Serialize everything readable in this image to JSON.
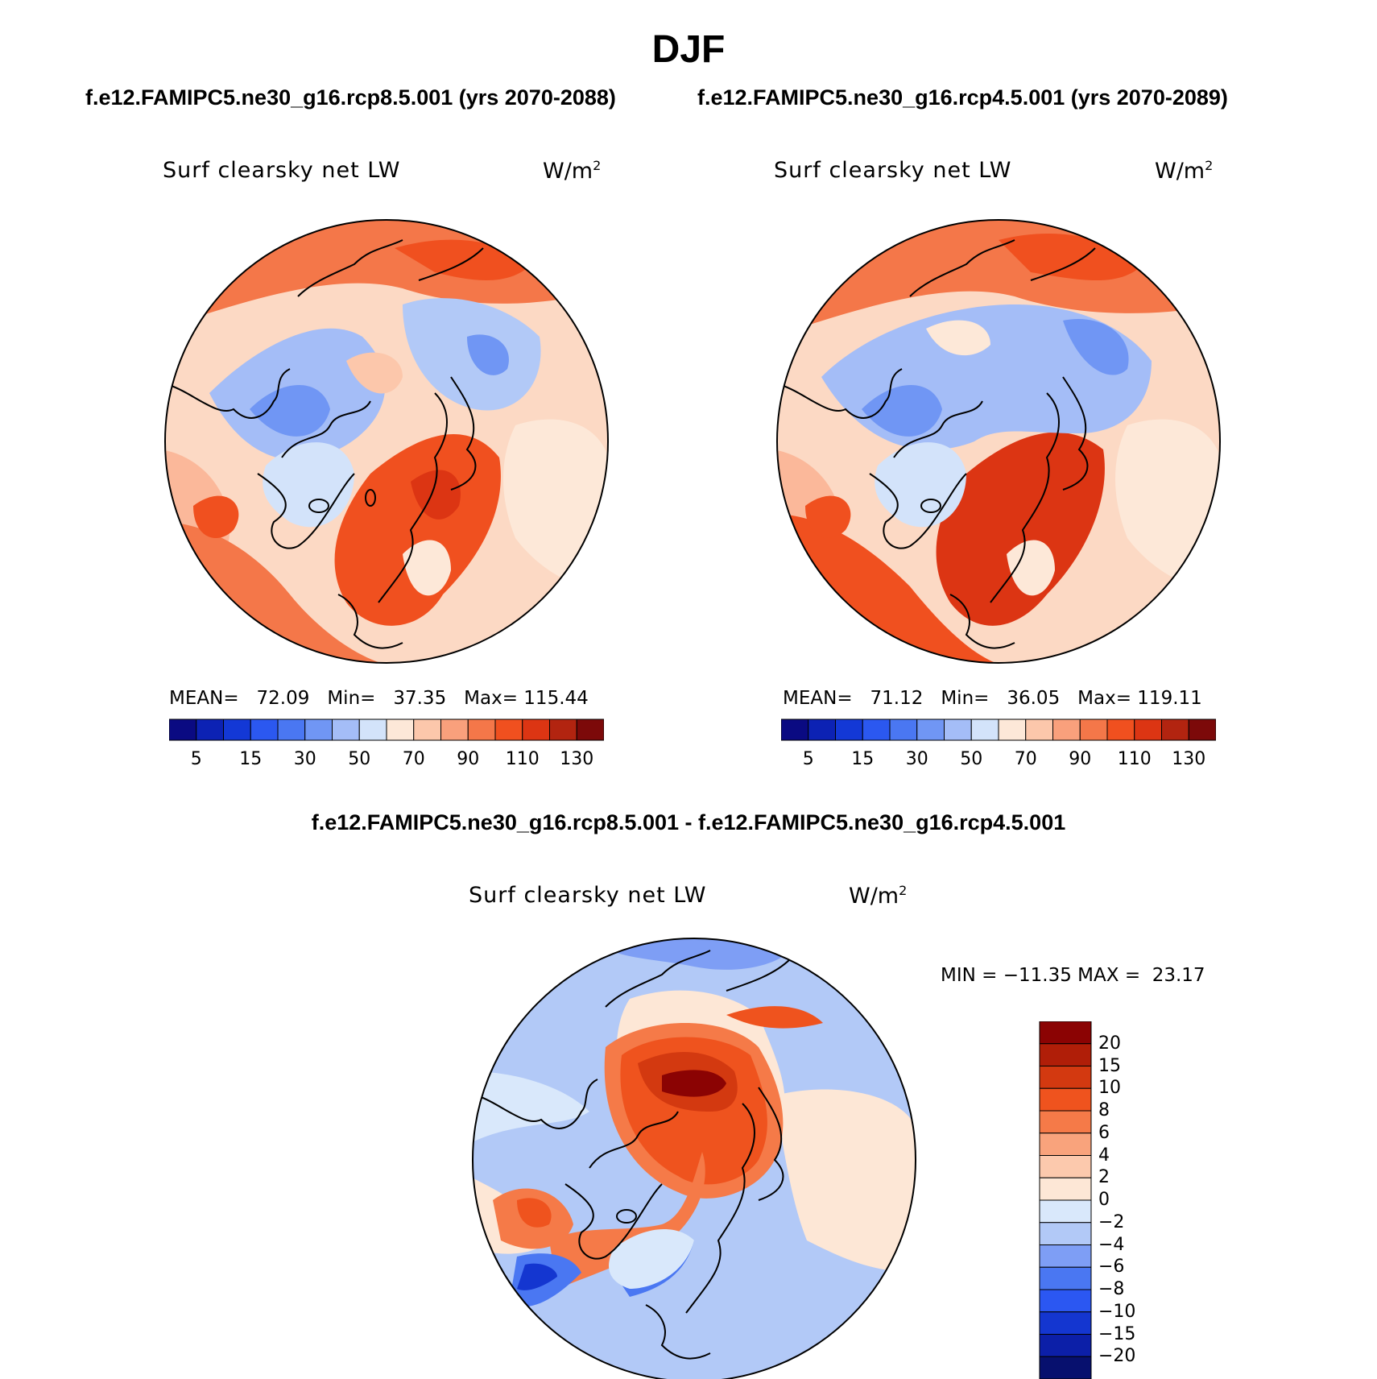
{
  "header": {
    "title": "DJF",
    "left_run": "f.e12.FAMIPC5.ne30_g16.rcp8.5.001 (yrs 2070-2088)",
    "right_run": "f.e12.FAMIPC5.ne30_g16.rcp4.5.001 (yrs 2070-2089)",
    "diff_title": "f.e12.FAMIPC5.ne30_g16.rcp8.5.001 - f.e12.FAMIPC5.ne30_g16.rcp4.5.001"
  },
  "panels": [
    {
      "variable": "Surf clearsky net LW",
      "units": "W/m",
      "units_sup": "2",
      "mean_label": "MEAN=",
      "mean": "72.09",
      "min_label": "Min=",
      "min": "37.35",
      "max_label": "Max=",
      "max": "115.44"
    },
    {
      "variable": "Surf clearsky net LW",
      "units": "W/m",
      "units_sup": "2",
      "mean_label": "MEAN=",
      "mean": "71.12",
      "min_label": "Min=",
      "min": "36.05",
      "max_label": "Max=",
      "max": "119.11"
    }
  ],
  "abs_colorbar": {
    "colors": [
      "#0a0a82",
      "#0c22b4",
      "#1338d6",
      "#2b58f0",
      "#4a77f2",
      "#7096f4",
      "#a4bdf7",
      "#d3e3fa",
      "#fde8d8",
      "#fcc7ab",
      "#f9a07c",
      "#f47749",
      "#f0501f",
      "#dc3513",
      "#b22410",
      "#7c0909"
    ],
    "labels": [
      "5",
      "15",
      "30",
      "50",
      "70",
      "90",
      "110",
      "130"
    ]
  },
  "diff_panel": {
    "variable": "Surf clearsky net LW",
    "units": "W/m",
    "units_sup": "2",
    "min_label": "MIN =",
    "min": "−11.35",
    "max_label": "MAX =",
    "max": "23.17",
    "colorbar": {
      "colors": [
        "#07106e",
        "#0c1fa8",
        "#1436d0",
        "#2b57f2",
        "#4a77f2",
        "#7e9ef5",
        "#b2c9f7",
        "#d9e8fb",
        "#fde7d6",
        "#fcc9ad",
        "#f9a37c",
        "#f57a48",
        "#ef531e",
        "#d33910",
        "#b01e08",
        "#8b0303"
      ],
      "labels": [
        "20",
        "15",
        "10",
        "8",
        "6",
        "4",
        "2",
        "0",
        "−2",
        "−4",
        "−6",
        "−8",
        "−10",
        "−15",
        "−20"
      ]
    }
  },
  "maps": {
    "rcp85_features": "Northern polar stereographic map: red Eurasia/Atlantic, blue Canadian Arctic, light blue Greenland",
    "rcp45_features": "Similar pattern with larger blue region over Arctic Ocean",
    "diff_features": "Positive anomaly over Arctic Ocean near Siberia, negative over Atlantic/Europe"
  }
}
